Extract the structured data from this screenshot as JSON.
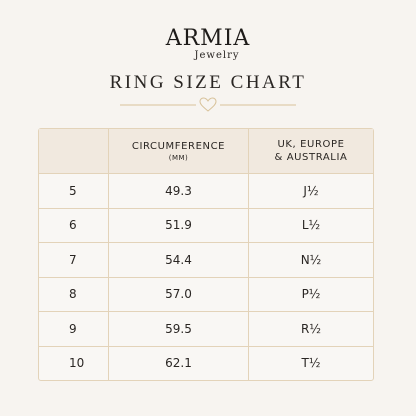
{
  "header": {
    "brand": "ARMIA",
    "subbrand": "Jewelry",
    "title": "RING SIZE CHART"
  },
  "table": {
    "columns": [
      {
        "label": "CIRCUMFERENCE",
        "sublabel": "(MM)"
      },
      {
        "label": "UK, EUROPE",
        "sublabel": "& AUSTRALIA"
      }
    ],
    "rows": [
      [
        "5",
        "49.3",
        "J½"
      ],
      [
        "6",
        "51.9",
        "L½"
      ],
      [
        "7",
        "54.4",
        "N½"
      ],
      [
        "8",
        "57.0",
        "P½"
      ],
      [
        "9",
        "59.5",
        "R½"
      ],
      [
        "10",
        "62.1",
        "T½"
      ]
    ]
  }
}
